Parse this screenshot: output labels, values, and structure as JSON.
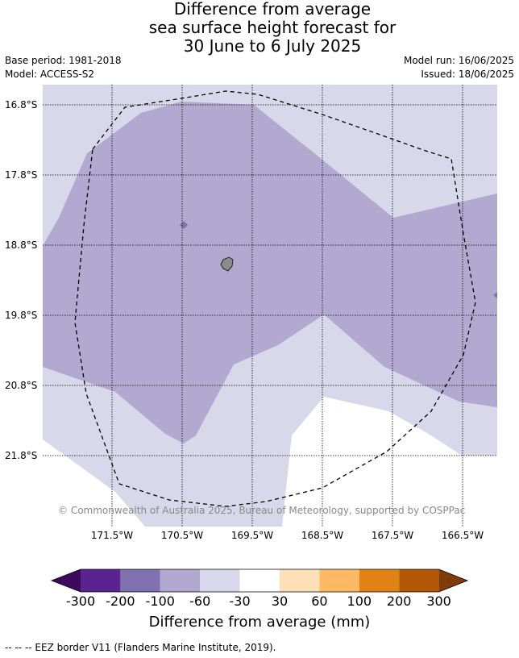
{
  "title": {
    "line1": "Difference from average",
    "line2": "sea surface height forecast for",
    "line3": "30 June to 6 July 2025"
  },
  "meta": {
    "base_period": "Base period: 1981-2018",
    "model": "Model: ACCESS-S2",
    "model_run": "Model run: 16/06/2025",
    "issued": "Issued: 18/06/2025"
  },
  "map": {
    "latitude_labels": [
      "16.8°S",
      "17.8°S",
      "18.8°S",
      "19.8°S",
      "20.8°S",
      "21.8°S"
    ],
    "longitude_labels": [
      "171.5°W",
      "170.5°W",
      "169.5°W",
      "168.5°W",
      "167.5°W",
      "166.5°W"
    ],
    "extent": {
      "lon_min_deg_w": 172.5,
      "lon_max_deg_w": 166.0,
      "lat_min_deg_s": 16.5,
      "lat_max_deg_s": 22.8
    },
    "copyright": "© Commonwealth of Australia 2025, Bureau of Meteorology, supported by COSPPac",
    "fill_colors": {
      "band_minus100_minus60": "#b1a9d0",
      "band_minus60_minus30": "#d8d8ea",
      "band_minus30_30": "#ffffff",
      "land": "#8c8c8c"
    }
  },
  "colorbar": {
    "ticks": [
      "-300",
      "-200",
      "-100",
      "-60",
      "-30",
      "30",
      "60",
      "100",
      "200",
      "300"
    ],
    "colors": [
      "#3d0a5a",
      "#5a2390",
      "#8171b0",
      "#b1a9d0",
      "#d8d8ea",
      "#ffffff",
      "#fee0b6",
      "#fdb863",
      "#e08214",
      "#b35806",
      "#7f3b08"
    ],
    "title": "Difference from average (mm)"
  },
  "footnote": "--  --  -- EEZ border V11 (Flanders Marine Institute, 2019)."
}
